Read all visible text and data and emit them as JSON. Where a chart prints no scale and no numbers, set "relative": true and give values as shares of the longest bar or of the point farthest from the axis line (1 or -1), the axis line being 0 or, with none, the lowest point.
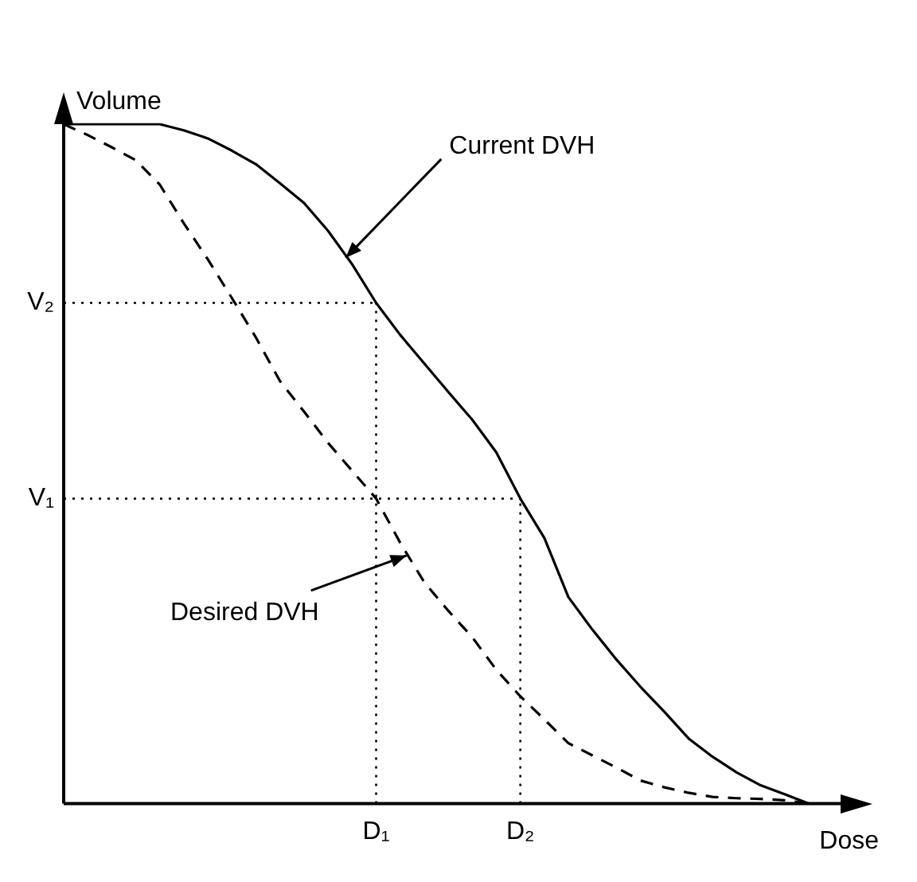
{
  "chart_data": {
    "type": "line",
    "xlabel": "Dose",
    "ylabel": "Volume",
    "relative": true,
    "legend": false,
    "marker": "none",
    "categories": [
      null,
      null,
      null,
      null,
      null,
      null,
      null,
      null,
      null,
      null,
      null,
      null,
      null,
      "D₁",
      null,
      null,
      null,
      null,
      null,
      "D₂",
      null,
      null,
      null,
      null,
      null,
      null,
      null,
      null,
      null,
      null,
      null,
      null
    ],
    "series": [
      {
        "color": "#000000",
        "line_style": "solid",
        "values": [
          1.0,
          1.0,
          1.0,
          1.0,
          1.0,
          0.991,
          0.979,
          0.961,
          0.941,
          0.913,
          0.884,
          0.843,
          0.794,
          0.737,
          0.69,
          0.648,
          0.606,
          0.565,
          0.517,
          0.449,
          0.391,
          0.304,
          0.256,
          0.212,
          0.172,
          0.135,
          0.096,
          0.069,
          0.046,
          0.027,
          0.014,
          0
        ]
      },
      {
        "color": "#000000",
        "line_style": "dashed",
        "values": [
          1.0,
          0.984,
          0.966,
          0.947,
          0.911,
          0.854,
          0.801,
          0.744,
          0.686,
          0.622,
          0.577,
          0.531,
          0.49,
          0.449,
          0.384,
          0.326,
          0.284,
          0.245,
          0.197,
          0.158,
          0.124,
          0.089,
          0.071,
          0.053,
          0.034,
          0.024,
          0.016,
          0.01,
          0.008,
          0.007,
          0.005,
          0
        ]
      }
    ],
    "ref_lines": [
      {
        "axis": "y",
        "value": 0.737,
        "label": "V₂",
        "line_style": "dotted"
      },
      {
        "axis": "y",
        "value": 0.449,
        "label": "V₁",
        "line_style": "dotted"
      },
      {
        "axis": "x",
        "value": "D₁",
        "line_style": "dotted"
      },
      {
        "axis": "x",
        "value": "D₂",
        "line_style": "dotted"
      }
    ],
    "annotations": [
      "Current DVH",
      "Desired DVH"
    ]
  }
}
